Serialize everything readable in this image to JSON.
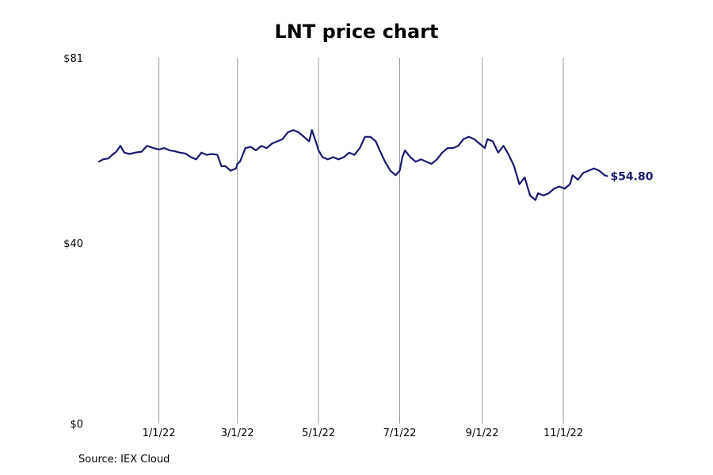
{
  "chart_data": {
    "type": "line",
    "title": "LNT price chart",
    "xlabel": "",
    "ylabel": "",
    "source": "Source: IEX Cloud",
    "line_color": "#191970",
    "grid_color": "#999999",
    "ylim": [
      0,
      81
    ],
    "y_ticks": [
      {
        "value": 0,
        "label": "$0"
      },
      {
        "value": 40,
        "label": "$40"
      },
      {
        "value": 81,
        "label": "$81"
      }
    ],
    "x_range": [
      "2021-11-17",
      "2022-12-21"
    ],
    "x_ticks": [
      {
        "date": "2022-01-01",
        "label": "1/1/22"
      },
      {
        "date": "2022-03-01",
        "label": "3/1/22"
      },
      {
        "date": "2022-05-01",
        "label": "5/1/22"
      },
      {
        "date": "2022-07-01",
        "label": "7/1/22"
      },
      {
        "date": "2022-09-01",
        "label": "9/1/22"
      },
      {
        "date": "2022-11-01",
        "label": "11/1/22"
      }
    ],
    "last_value_label": "$54.80",
    "series": [
      {
        "points": [
          [
            "2021-11-17",
            58.0
          ],
          [
            "2021-11-20",
            58.5
          ],
          [
            "2021-11-24",
            58.7
          ],
          [
            "2021-11-27",
            59.5
          ],
          [
            "2021-11-30",
            60.2
          ],
          [
            "2021-12-03",
            61.5
          ],
          [
            "2021-12-06",
            60.0
          ],
          [
            "2021-12-10",
            59.7
          ],
          [
            "2021-12-14",
            60.0
          ],
          [
            "2021-12-19",
            60.2
          ],
          [
            "2021-12-23",
            61.5
          ],
          [
            "2021-12-28",
            61.0
          ],
          [
            "2022-01-01",
            60.7
          ],
          [
            "2022-01-05",
            61.0
          ],
          [
            "2022-01-09",
            60.5
          ],
          [
            "2022-01-13",
            60.3
          ],
          [
            "2022-01-17",
            60.0
          ],
          [
            "2022-01-21",
            59.8
          ],
          [
            "2022-01-25",
            59.0
          ],
          [
            "2022-01-29",
            58.5
          ],
          [
            "2022-02-02",
            60.0
          ],
          [
            "2022-02-06",
            59.5
          ],
          [
            "2022-02-10",
            59.7
          ],
          [
            "2022-02-14",
            59.5
          ],
          [
            "2022-02-17",
            57.0
          ],
          [
            "2022-02-20",
            57.0
          ],
          [
            "2022-02-24",
            56.0
          ],
          [
            "2022-02-28",
            56.5
          ],
          [
            "2022-03-01",
            57.5
          ],
          [
            "2022-03-03",
            58.0
          ],
          [
            "2022-03-07",
            61.0
          ],
          [
            "2022-03-11",
            61.3
          ],
          [
            "2022-03-15",
            60.5
          ],
          [
            "2022-03-19",
            61.5
          ],
          [
            "2022-03-23",
            61.0
          ],
          [
            "2022-03-27",
            62.0
          ],
          [
            "2022-03-31",
            62.5
          ],
          [
            "2022-04-04",
            63.0
          ],
          [
            "2022-04-08",
            64.5
          ],
          [
            "2022-04-12",
            65.0
          ],
          [
            "2022-04-16",
            64.5
          ],
          [
            "2022-04-20",
            63.5
          ],
          [
            "2022-04-24",
            62.5
          ],
          [
            "2022-04-26",
            65.0
          ],
          [
            "2022-04-30",
            61.5
          ],
          [
            "2022-05-01",
            60.5
          ],
          [
            "2022-05-04",
            59.0
          ],
          [
            "2022-05-08",
            58.5
          ],
          [
            "2022-05-12",
            59.0
          ],
          [
            "2022-05-16",
            58.5
          ],
          [
            "2022-05-20",
            59.0
          ],
          [
            "2022-05-24",
            60.0
          ],
          [
            "2022-05-28",
            59.5
          ],
          [
            "2022-06-01",
            61.0
          ],
          [
            "2022-06-05",
            63.5
          ],
          [
            "2022-06-09",
            63.5
          ],
          [
            "2022-06-13",
            62.5
          ],
          [
            "2022-06-16",
            60.5
          ],
          [
            "2022-06-20",
            58.0
          ],
          [
            "2022-06-24",
            56.0
          ],
          [
            "2022-06-28",
            55.0
          ],
          [
            "2022-07-01",
            56.0
          ],
          [
            "2022-07-03",
            59.0
          ],
          [
            "2022-07-05",
            60.5
          ],
          [
            "2022-07-09",
            59.0
          ],
          [
            "2022-07-13",
            58.0
          ],
          [
            "2022-07-17",
            58.5
          ],
          [
            "2022-07-21",
            58.0
          ],
          [
            "2022-07-25",
            57.5
          ],
          [
            "2022-07-29",
            58.5
          ],
          [
            "2022-08-02",
            60.0
          ],
          [
            "2022-08-06",
            61.0
          ],
          [
            "2022-08-10",
            61.0
          ],
          [
            "2022-08-14",
            61.5
          ],
          [
            "2022-08-18",
            63.0
          ],
          [
            "2022-08-22",
            63.5
          ],
          [
            "2022-08-26",
            63.0
          ],
          [
            "2022-08-30",
            62.0
          ],
          [
            "2022-09-01",
            61.5
          ],
          [
            "2022-09-03",
            61.0
          ],
          [
            "2022-09-05",
            63.0
          ],
          [
            "2022-09-09",
            62.5
          ],
          [
            "2022-09-13",
            60.0
          ],
          [
            "2022-09-17",
            61.5
          ],
          [
            "2022-09-21",
            59.5
          ],
          [
            "2022-09-25",
            57.0
          ],
          [
            "2022-09-29",
            53.0
          ],
          [
            "2022-10-03",
            54.5
          ],
          [
            "2022-10-07",
            50.5
          ],
          [
            "2022-10-11",
            49.5
          ],
          [
            "2022-10-13",
            51.0
          ],
          [
            "2022-10-17",
            50.5
          ],
          [
            "2022-10-21",
            51.0
          ],
          [
            "2022-10-25",
            52.0
          ],
          [
            "2022-10-29",
            52.5
          ],
          [
            "2022-11-02",
            52.0
          ],
          [
            "2022-11-06",
            53.0
          ],
          [
            "2022-11-08",
            55.0
          ],
          [
            "2022-11-12",
            54.0
          ],
          [
            "2022-11-16",
            55.5
          ],
          [
            "2022-11-20",
            56.0
          ],
          [
            "2022-11-24",
            56.5
          ],
          [
            "2022-11-28",
            56.0
          ],
          [
            "2022-12-02",
            55.0
          ],
          [
            "2022-12-04",
            54.8
          ]
        ]
      }
    ]
  }
}
